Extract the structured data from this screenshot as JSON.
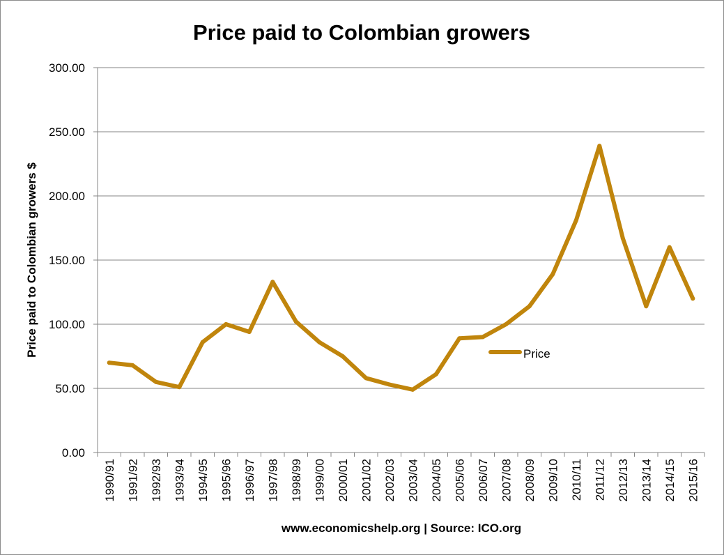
{
  "chart_data": {
    "type": "line",
    "title": "Price paid to Colombian growers",
    "xlabel": "www.economicshelp.org | Source: ICO.org",
    "ylabel": "Price paid to Colombian growers $",
    "ylim": [
      0,
      300
    ],
    "yticks": [
      "0.00",
      "50.00",
      "100.00",
      "150.00",
      "200.00",
      "250.00",
      "300.00"
    ],
    "grid": true,
    "legend_position": "center-right",
    "line_color": "#c0850c",
    "categories": [
      "1990/91",
      "1991/92",
      "1992/93",
      "1993/94",
      "1994/95",
      "1995/96",
      "1996/97",
      "1997/98",
      "1998/99",
      "1999/00",
      "2000/01",
      "2001/02",
      "2002/03",
      "2003/04",
      "2004/05",
      "2005/06",
      "2006/07",
      "2007/08",
      "2008/09",
      "2009/10",
      "2010/11",
      "2011/12",
      "2012/13",
      "2013/14",
      "2014/15",
      "2015/16"
    ],
    "series": [
      {
        "name": "Price",
        "values": [
          70,
          68,
          55,
          51,
          86,
          100,
          94,
          133,
          102,
          86,
          75,
          58,
          53,
          49,
          61,
          89,
          90,
          100,
          114,
          139,
          181,
          239,
          167,
          114,
          160,
          120
        ]
      }
    ]
  }
}
